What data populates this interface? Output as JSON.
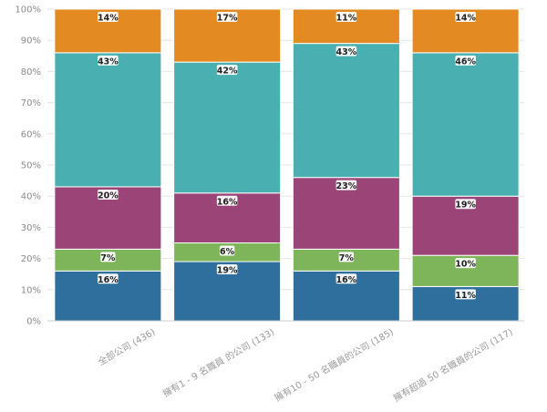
{
  "chart_data": {
    "type": "bar",
    "stacked": true,
    "ylim": [
      0,
      100
    ],
    "y_ticks": [
      "0%",
      "10%",
      "20%",
      "30%",
      "40%",
      "50%",
      "60%",
      "70%",
      "80%",
      "90%",
      "100%"
    ],
    "grid": true,
    "categories": [
      "全部公司 (436)",
      "擁有1 - 9 名職員 的公司 (133)",
      "擁有10 - 50 名職員的公司 (185)",
      "擁有超過 50 名職員的公司 (117)"
    ],
    "series": [
      {
        "color": "#2e6f9e",
        "values": [
          16,
          19,
          16,
          11
        ],
        "labels": [
          "16%",
          "19%",
          "16%",
          "11%"
        ]
      },
      {
        "color": "#7fb55a",
        "values": [
          7,
          6,
          7,
          10
        ],
        "labels": [
          "7%",
          "6%",
          "7%",
          "10%"
        ]
      },
      {
        "color": "#9b4477",
        "values": [
          20,
          16,
          23,
          19
        ],
        "labels": [
          "20%",
          "16%",
          "23%",
          "19%"
        ]
      },
      {
        "color": "#4aafb0",
        "values": [
          43,
          42,
          43,
          46
        ],
        "labels": [
          "43%",
          "42%",
          "43%",
          "46%"
        ]
      },
      {
        "color": "#e38a22",
        "values": [
          14,
          17,
          11,
          14
        ],
        "labels": [
          "14%",
          "17%",
          "11%",
          "14%"
        ]
      }
    ]
  }
}
